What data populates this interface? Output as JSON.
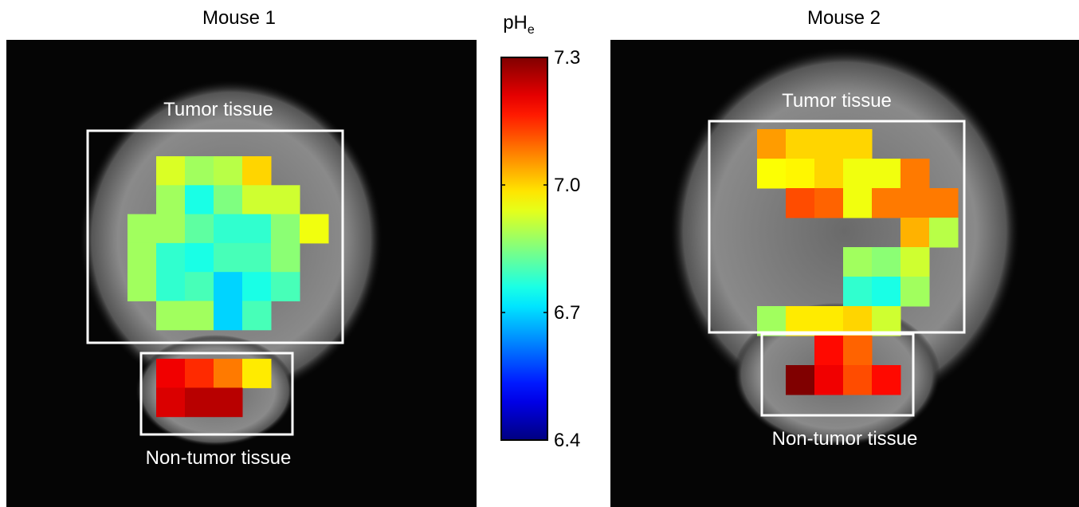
{
  "chart_data": [
    {
      "type": "heatmap",
      "title": "Mouse 1",
      "colormap": "jet",
      "annotations": [
        "Tumor tissue",
        "Non-tumor tissue"
      ],
      "z": [
        [
          null,
          6.93,
          6.88,
          6.9,
          7.0,
          null,
          null
        ],
        [
          null,
          6.88,
          6.76,
          6.85,
          6.92,
          6.92,
          null
        ],
        [
          6.88,
          6.88,
          6.82,
          6.78,
          6.78,
          6.86,
          6.95
        ],
        [
          6.88,
          6.78,
          6.76,
          6.8,
          6.8,
          6.86,
          null
        ],
        [
          6.88,
          6.78,
          6.8,
          6.7,
          6.76,
          6.8,
          null
        ],
        [
          null,
          6.88,
          6.88,
          6.7,
          6.8,
          null,
          null
        ],
        [
          null,
          null,
          null,
          null,
          null,
          null,
          null
        ],
        [
          null,
          7.2,
          7.15,
          7.08,
          6.98,
          null,
          null
        ],
        [
          null,
          7.22,
          7.25,
          7.25,
          null,
          null,
          null
        ]
      ]
    },
    {
      "type": "heatmap",
      "title": "Mouse 2",
      "colormap": "jet",
      "annotations": [
        "Tumor tissue",
        "Non-tumor tissue"
      ],
      "z": [
        [
          7.05,
          7.0,
          7.0,
          7.0,
          null,
          null,
          null
        ],
        [
          6.96,
          6.97,
          7.0,
          6.95,
          6.95,
          7.08,
          null
        ],
        [
          null,
          7.12,
          7.1,
          6.95,
          7.08,
          7.08,
          7.08
        ],
        [
          null,
          null,
          null,
          null,
          null,
          7.03,
          6.9
        ],
        [
          null,
          null,
          null,
          6.88,
          6.86,
          6.92,
          null
        ],
        [
          null,
          null,
          null,
          6.78,
          6.76,
          6.88,
          null
        ],
        [
          6.88,
          6.98,
          6.98,
          7.0,
          6.92,
          null,
          null
        ],
        [
          null,
          null,
          7.18,
          7.1,
          null,
          null,
          null
        ],
        [
          null,
          7.3,
          7.2,
          7.12,
          7.18,
          null,
          null
        ]
      ]
    }
  ],
  "colorbar": {
    "label": "pH",
    "label_subscript": "e",
    "colormap": "jet",
    "clim": [
      6.4,
      7.3
    ],
    "ticks": [
      6.4,
      6.7,
      {
        "value": 7,
        "label": "7.0"
      },
      7.3
    ]
  }
}
